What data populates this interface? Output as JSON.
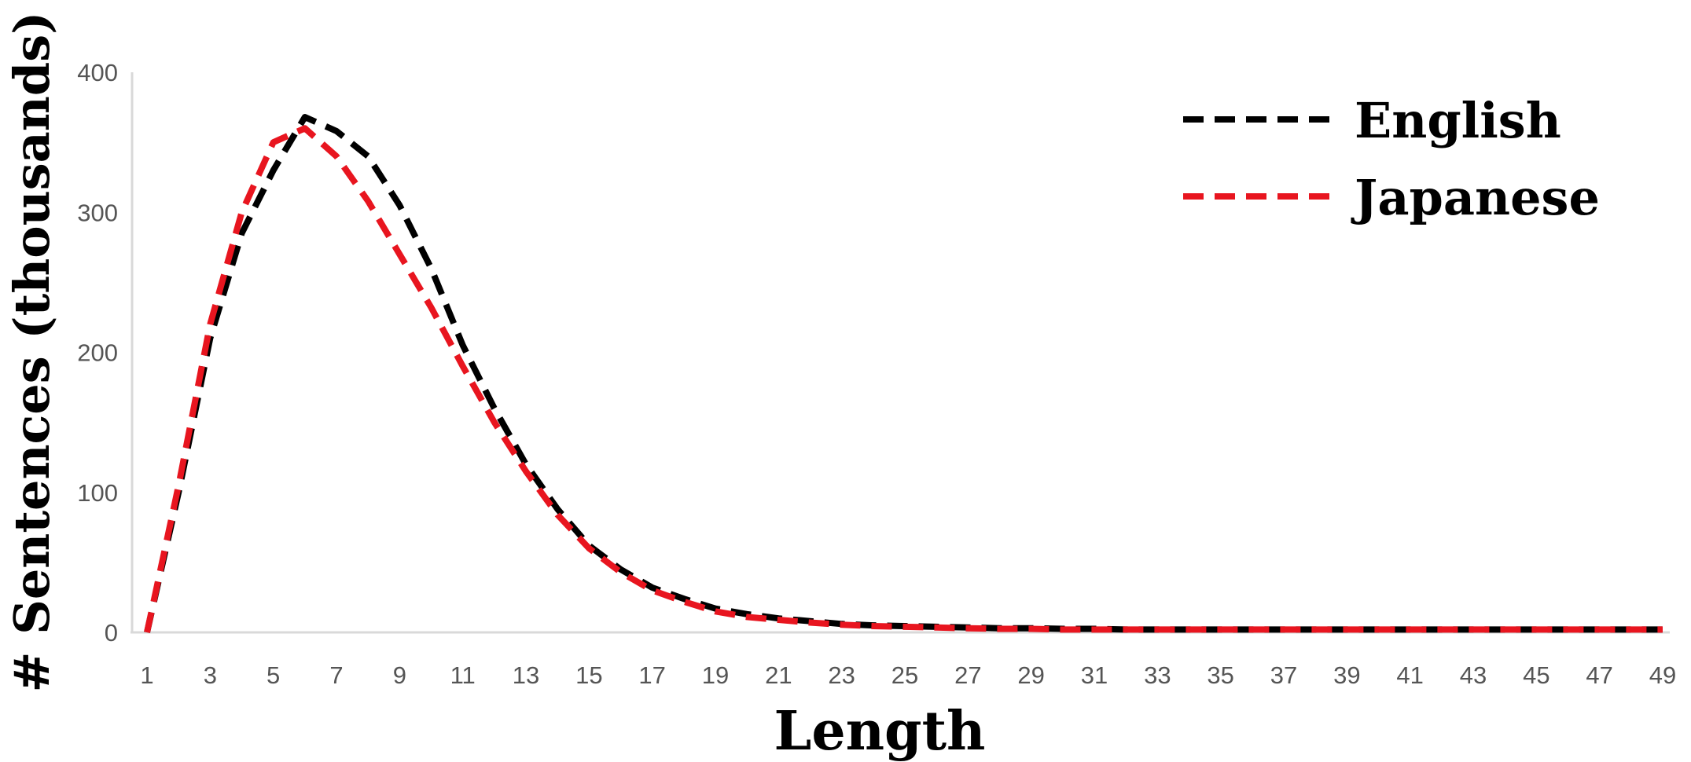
{
  "chart_data": {
    "type": "line",
    "title": "",
    "xlabel": "Length",
    "ylabel": "# Sentences (thousands)",
    "x": [
      1,
      2,
      3,
      4,
      5,
      6,
      7,
      8,
      9,
      10,
      11,
      12,
      13,
      14,
      15,
      16,
      17,
      18,
      19,
      20,
      21,
      22,
      23,
      24,
      25,
      26,
      27,
      28,
      29,
      30,
      31,
      32,
      33,
      34,
      35,
      36,
      37,
      38,
      39,
      40,
      41,
      42,
      43,
      44,
      45,
      46,
      47,
      48,
      49
    ],
    "x_tick_labels": [
      "1",
      "3",
      "5",
      "7",
      "9",
      "11",
      "13",
      "15",
      "17",
      "19",
      "21",
      "23",
      "25",
      "27",
      "29",
      "31",
      "33",
      "35",
      "37",
      "39",
      "41",
      "43",
      "45",
      "47",
      "49"
    ],
    "y_tick_labels": [
      "0",
      "100",
      "200",
      "300",
      "400"
    ],
    "ylim": [
      0,
      400
    ],
    "grid": false,
    "legend_position": "top-right",
    "series": [
      {
        "name": "English",
        "color": "#000000",
        "style": "dashed",
        "values": [
          0,
          100,
          210,
          285,
          330,
          368,
          358,
          340,
          305,
          260,
          205,
          160,
          120,
          88,
          62,
          45,
          32,
          24,
          17,
          13,
          10,
          8,
          6,
          5,
          4.5,
          4,
          3.5,
          3,
          3,
          2.5,
          2.5,
          2,
          2,
          2,
          2,
          2,
          2,
          2,
          2,
          2,
          2,
          2,
          2,
          2,
          2,
          2,
          2,
          2,
          2
        ]
      },
      {
        "name": "Japanese",
        "color": "#e8151f",
        "style": "dashed",
        "values": [
          0,
          105,
          220,
          300,
          350,
          360,
          340,
          308,
          270,
          232,
          190,
          150,
          115,
          84,
          60,
          43,
          30,
          22,
          15,
          11,
          9,
          7,
          5.5,
          4.5,
          4,
          3.5,
          3,
          2.5,
          2.5,
          2,
          2,
          2,
          2,
          2,
          2,
          2,
          2,
          2,
          2,
          2,
          2,
          2,
          2,
          2,
          2,
          2,
          2,
          2,
          2
        ]
      }
    ]
  }
}
